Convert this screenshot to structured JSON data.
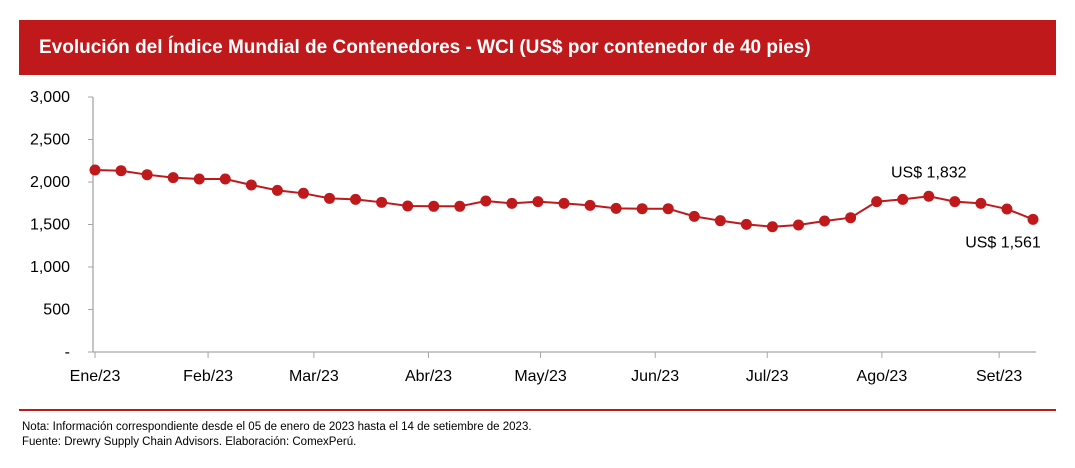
{
  "title": "Evolución del Índice Mundial de Contenedores - WCI (US$ por contenedor de 40 pies)",
  "colors": {
    "accent": "#c0191c",
    "series": "#c0191c"
  },
  "chart_data": {
    "type": "line",
    "title": "Evolución del Índice Mundial de Contenedores - WCI (US$ por contenedor de 40 pies)",
    "xlabel": "",
    "ylabel": "",
    "ylim": [
      0,
      3000
    ],
    "y_ticks": [
      {
        "v": 0,
        "label": "-"
      },
      {
        "v": 500,
        "label": "500"
      },
      {
        "v": 1000,
        "label": "1,000"
      },
      {
        "v": 1500,
        "label": "1,500"
      },
      {
        "v": 2000,
        "label": "2,000"
      },
      {
        "v": 2500,
        "label": "2,500"
      },
      {
        "v": 3000,
        "label": "3,000"
      }
    ],
    "x_ticks": [
      {
        "w": 0,
        "label": "Ene/23"
      },
      {
        "w": 4.34,
        "label": "Feb/23"
      },
      {
        "w": 8.4,
        "label": "Mar/23"
      },
      {
        "w": 12.8,
        "label": "Abr/23"
      },
      {
        "w": 17.1,
        "label": "May/23"
      },
      {
        "w": 21.5,
        "label": "Jun/23"
      },
      {
        "w": 25.8,
        "label": "Jul/23"
      },
      {
        "w": 30.2,
        "label": "Ago/23"
      },
      {
        "w": 34.7,
        "label": "Set/23"
      }
    ],
    "values": [
      2141,
      2133,
      2086,
      2051,
      2035,
      2035,
      1965,
      1902,
      1867,
      1808,
      1796,
      1761,
      1718,
      1714,
      1714,
      1776,
      1749,
      1769,
      1749,
      1725,
      1690,
      1686,
      1686,
      1596,
      1545,
      1502,
      1474,
      1494,
      1541,
      1580,
      1769,
      1796,
      1832,
      1769,
      1749,
      1682,
      1561
    ],
    "annotations": [
      {
        "index": 32,
        "text": "US$ 1,832",
        "position": "above"
      },
      {
        "index": 36,
        "text": "US$ 1,561",
        "position": "below"
      }
    ],
    "grid": false,
    "legend": "none"
  },
  "notes": {
    "note": "Nota: Información correspondiente desde el 05 de enero de 2023 hasta el 14 de setiembre de 2023.",
    "source": "Fuente: Drewry Supply Chain Advisors. Elaboración: ComexPerú."
  }
}
